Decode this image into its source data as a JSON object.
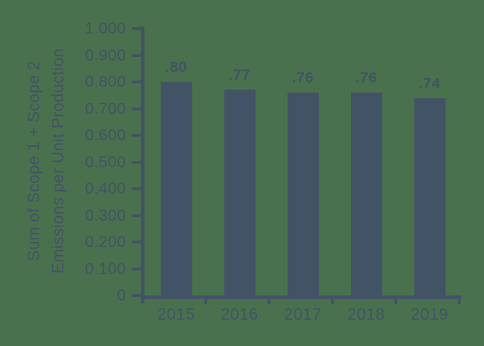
{
  "colors": {
    "background": "#4A714D",
    "ink": "#425366"
  },
  "chart_data": {
    "type": "bar",
    "title": "",
    "xlabel": "",
    "ylabel_lines": [
      "Sum of Scope 1 + Scope 2",
      "Emissions per Unit Production"
    ],
    "categories": [
      "2015",
      "2016",
      "2017",
      "2018",
      "2019"
    ],
    "values": [
      0.8,
      0.77,
      0.76,
      0.76,
      0.74
    ],
    "value_labels": [
      ".80",
      ".77",
      ".76",
      ".76",
      ".74"
    ],
    "ylim": [
      0,
      1.0
    ],
    "y_tick_step": 0.1,
    "y_tick_labels": [
      "0",
      "0.100",
      "0.200",
      "0.300",
      "0.400",
      "0.500",
      "0.600",
      "0.700",
      "0.800",
      "0.900",
      "1.000"
    ],
    "grid": false,
    "legend": null
  }
}
